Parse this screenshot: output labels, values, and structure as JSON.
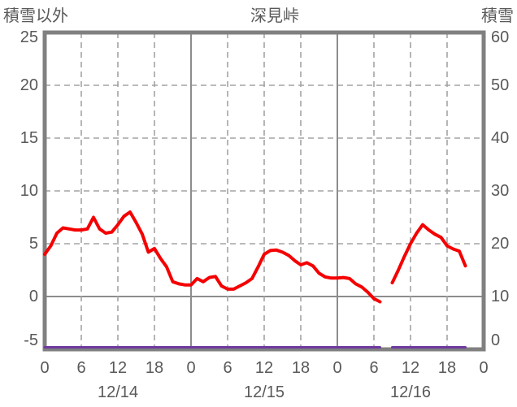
{
  "header": {
    "left_axis_title": "積雪以外",
    "title": "深見峠",
    "right_axis_title": "積雪"
  },
  "chart_data": {
    "type": "line",
    "title": "深見峠",
    "legend": "none",
    "grid": "on",
    "left_axis": {
      "label": "積雪以外",
      "min": -5,
      "max": 25,
      "ticks": [
        25,
        20,
        15,
        10,
        5,
        0,
        -5
      ],
      "dashed_gridlines": [
        20,
        15,
        10,
        5
      ],
      "solid_gridlines": [
        0
      ]
    },
    "right_axis": {
      "label": "積雪",
      "min": 0,
      "max": 60,
      "ticks": [
        60,
        50,
        40,
        30,
        20,
        10,
        0
      ]
    },
    "x_axis": {
      "hours_total": 72,
      "tick_step_hours": 6,
      "tick_labels": [
        "0",
        "6",
        "12",
        "18",
        "0",
        "6",
        "12",
        "18",
        "0",
        "6",
        "12",
        "18",
        "0"
      ],
      "day_labels": [
        "12/14",
        "12/15",
        "12/16"
      ],
      "dashed_gridline_hours": [
        6,
        12,
        18,
        30,
        36,
        42,
        54,
        60,
        66
      ],
      "solid_gridline_hours": [
        24,
        48
      ]
    },
    "series": [
      {
        "name": "積雪以外",
        "axis": "left",
        "color": "#f50000",
        "values": [
          4.0,
          4.8,
          6.0,
          6.5,
          6.4,
          6.3,
          6.3,
          6.4,
          7.5,
          6.4,
          6.0,
          6.1,
          6.8,
          7.6,
          8.0,
          7.0,
          5.9,
          4.2,
          4.55,
          3.6,
          2.8,
          1.4,
          1.2,
          1.1,
          1.1,
          1.7,
          1.4,
          1.8,
          1.9,
          1.0,
          0.7,
          0.7,
          1.0,
          1.3,
          1.7,
          2.8,
          4.0,
          4.35,
          4.4,
          4.2,
          3.9,
          3.4,
          3.0,
          3.2,
          2.9,
          2.2,
          1.85,
          1.75,
          1.75,
          1.8,
          1.7,
          1.2,
          0.9,
          0.4,
          -0.2,
          -0.5,
          null,
          1.3,
          2.5,
          3.8,
          5.0,
          6.0,
          6.8,
          6.3,
          5.9,
          5.6,
          4.8,
          4.5,
          4.3,
          2.9
        ]
      },
      {
        "name": "積雪",
        "axis": "right",
        "color": "#6f3a9e",
        "values": [
          0,
          0,
          0,
          0,
          0,
          0,
          0,
          0,
          0,
          0,
          0,
          0,
          0,
          0,
          0,
          0,
          0,
          0,
          0,
          0,
          0,
          0,
          0,
          0,
          0,
          0,
          0,
          0,
          0,
          0,
          0,
          0,
          0,
          0,
          0,
          0,
          0,
          0,
          0,
          0,
          0,
          0,
          0,
          0,
          0,
          0,
          0,
          0,
          0,
          0,
          0,
          0,
          0,
          0,
          0,
          0,
          null,
          0,
          0,
          0,
          0,
          0,
          0,
          0,
          0,
          0,
          0,
          0,
          0,
          0
        ]
      }
    ]
  },
  "colors": {
    "border": "#808080",
    "gridline": "#a3a3a3",
    "zero_line": "#8c8c8c",
    "text": "#595959",
    "background": "#ffffff"
  }
}
